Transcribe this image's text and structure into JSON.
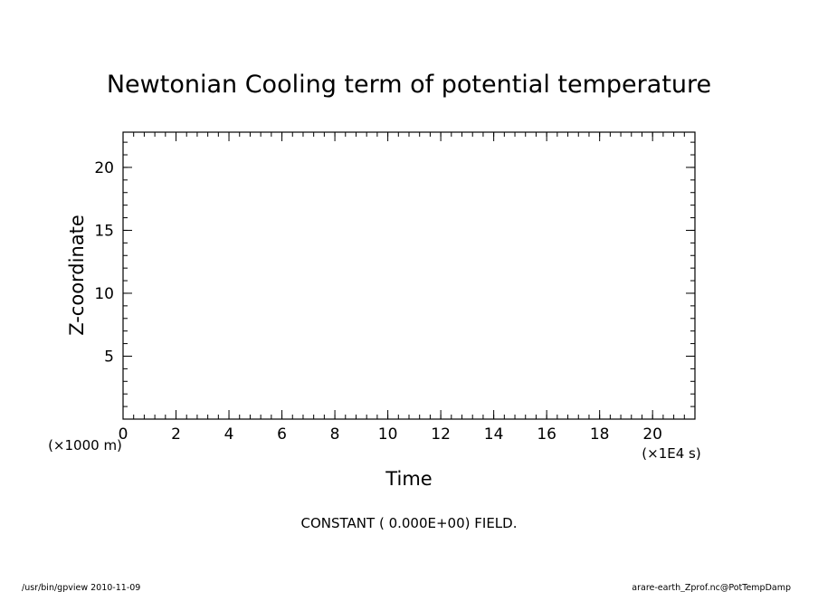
{
  "chart_data": {
    "type": "line",
    "title": "Newtonian Cooling term of potential temperature",
    "xlabel": "Time",
    "ylabel": "Z-coordinate",
    "x_unit_label": "(×1E4 s)",
    "y_unit_label": "(×1000 m)",
    "xlim": [
      0,
      21.6
    ],
    "ylim": [
      0,
      22.8
    ],
    "x_major_ticks": [
      0,
      2,
      4,
      6,
      8,
      10,
      12,
      14,
      16,
      18,
      20
    ],
    "y_major_ticks": [
      5,
      10,
      15,
      20
    ],
    "x_tick_labels": [
      "0",
      "2",
      "4",
      "6",
      "8",
      "10",
      "12",
      "14",
      "16",
      "18",
      "20"
    ],
    "y_tick_labels": [
      "5",
      "10",
      "15",
      "20"
    ],
    "x_minor_step": 0.4,
    "y_minor_step": 1,
    "grid": false,
    "series": [],
    "annotation": "CONSTANT ( 0.000E+00) FIELD."
  },
  "footer": {
    "left": "/usr/bin/gpview  2010-11-09",
    "right": "arare-earth_Zprof.nc@PotTempDamp"
  }
}
